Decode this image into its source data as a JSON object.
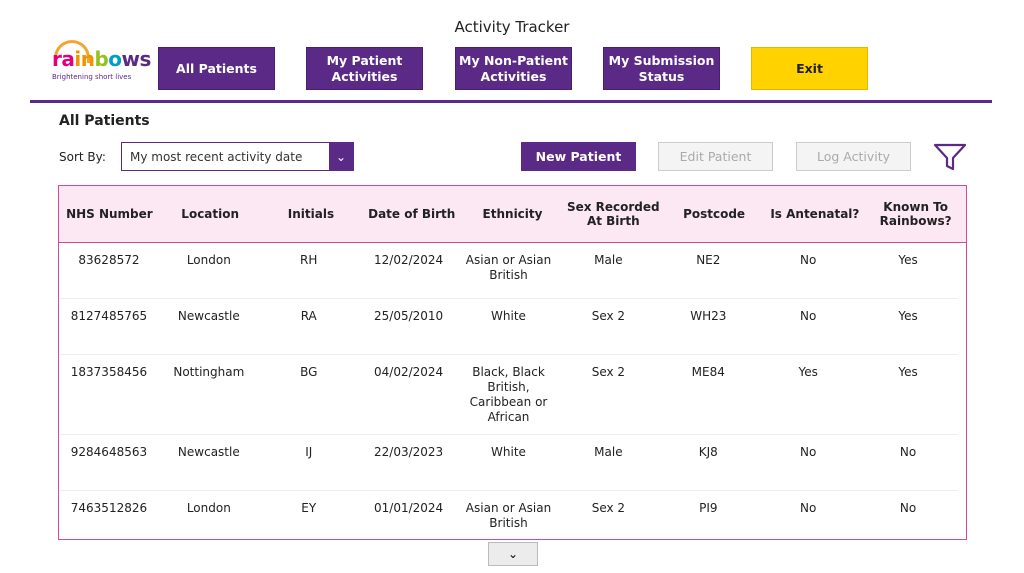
{
  "header": {
    "title": "Activity Tracker",
    "logo_text": "rainbows",
    "logo_tagline": "Brightening short lives"
  },
  "nav": [
    {
      "label": "All Patients"
    },
    {
      "label": "My Patient Activities"
    },
    {
      "label": "My Non-Patient Activities"
    },
    {
      "label": "My Submission Status"
    },
    {
      "label": "Exit"
    }
  ],
  "section_title": "All Patients",
  "sort": {
    "label": "Sort By:",
    "value": "My most recent activity date"
  },
  "actions": {
    "new": "New Patient",
    "edit": "Edit Patient",
    "log": "Log Activity"
  },
  "colors": {
    "purple": "#5b2a86",
    "yellow": "#ffd200",
    "pink_border": "#d04b9b",
    "pink_header": "#fce8f3"
  },
  "table": {
    "columns": [
      "NHS Number",
      "Location",
      "Initials",
      "Date of Birth",
      "Ethnicity",
      "Sex Recorded At Birth",
      "Postcode",
      "Is Antenatal?",
      "Known To Rainbows?"
    ],
    "rows": [
      [
        "83628572",
        "London",
        "RH",
        "12/02/2024",
        "Asian or Asian British",
        "Male",
        "NE2",
        "No",
        "Yes"
      ],
      [
        "8127485765",
        "Newcastle",
        "RA",
        "25/05/2010",
        "White",
        "Sex 2",
        "WH23",
        "No",
        "Yes"
      ],
      [
        "1837358456",
        "Nottingham",
        "BG",
        "04/02/2024",
        "Black, Black British, Caribbean or African",
        "Sex 2",
        "ME84",
        "Yes",
        "Yes"
      ],
      [
        "9284648563",
        "Newcastle",
        "IJ",
        "22/03/2023",
        "White",
        "Male",
        "KJ8",
        "No",
        "No"
      ],
      [
        "7463512826",
        "London",
        "EY",
        "01/01/2024",
        "Asian or Asian British",
        "Sex 2",
        "PI9",
        "No",
        "No"
      ]
    ]
  }
}
